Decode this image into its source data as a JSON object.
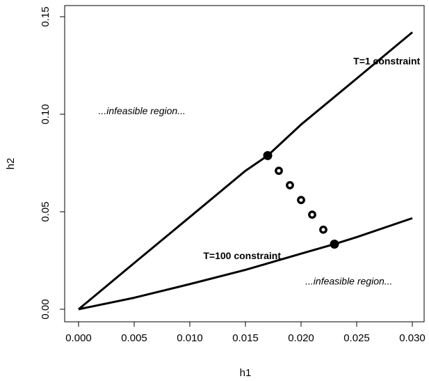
{
  "chart_data": {
    "type": "line",
    "title": "",
    "xlabel": "h1",
    "ylabel": "h2",
    "xlim": [
      0,
      0.03
    ],
    "ylim": [
      0,
      0.15
    ],
    "grid": false,
    "x_ticks": [
      "0.000",
      "0.005",
      "0.010",
      "0.015",
      "0.020",
      "0.025",
      "0.030"
    ],
    "x_tick_values": [
      0,
      0.005,
      0.01,
      0.015,
      0.02,
      0.025,
      0.03
    ],
    "y_ticks": [
      "0.00",
      "0.05",
      "0.10",
      "0.15"
    ],
    "y_tick_values": [
      0,
      0.05,
      0.1,
      0.15
    ],
    "series": [
      {
        "key": "t1",
        "x": [
          0,
          0.005,
          0.01,
          0.015,
          0.017,
          0.02,
          0.025,
          0.03
        ],
        "y": [
          0,
          0.0237,
          0.0473,
          0.071,
          0.0788,
          0.0947,
          0.1183,
          0.142
        ]
      },
      {
        "key": "t100",
        "x": [
          0,
          0.005,
          0.01,
          0.015,
          0.02,
          0.023,
          0.025,
          0.03
        ],
        "y": [
          0,
          0.0059,
          0.0129,
          0.0202,
          0.0285,
          0.0334,
          0.037,
          0.0467
        ]
      }
    ],
    "points": {
      "large": [
        {
          "x": 0.017,
          "y": 0.0788
        },
        {
          "x": 0.023,
          "y": 0.0334
        }
      ],
      "ring": [
        {
          "x": 0.018,
          "y": 0.071
        },
        {
          "x": 0.019,
          "y": 0.0636
        },
        {
          "x": 0.02,
          "y": 0.056
        },
        {
          "x": 0.021,
          "y": 0.0485
        },
        {
          "x": 0.022,
          "y": 0.0408
        }
      ]
    },
    "annotations": [
      {
        "text": "T=1 constraint",
        "x": 0.0277,
        "y": 0.1255,
        "style": "bold"
      },
      {
        "text": "T=100 constraint",
        "x": 0.0147,
        "y": 0.0258,
        "style": "bold"
      },
      {
        "text": "...infeasible region...",
        "x": 0.0057,
        "y": 0.1,
        "style": "italic"
      },
      {
        "text": "...infeasible region...",
        "x": 0.0243,
        "y": 0.0126,
        "style": "italic"
      }
    ]
  }
}
